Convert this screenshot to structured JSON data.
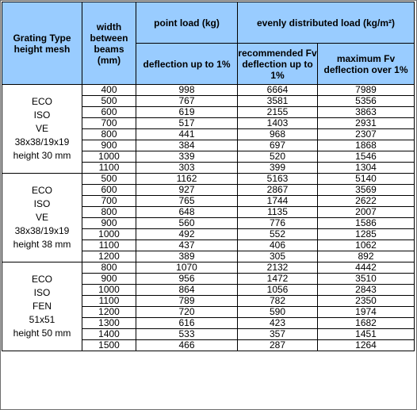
{
  "headers": {
    "grating_type": "Grating Type height mesh",
    "width": "width between beams (mm)",
    "point_load": "point load (kg)",
    "distributed_load": "evenly distributed load (kg/m²)",
    "deflection_1": "deflection up to 1%",
    "recommended": "recommended Fv deflection up to 1%",
    "maximum": "maximum  Fv deflection over  1%"
  },
  "groups": [
    {
      "lines": [
        "ECO",
        "ISO",
        "VE",
        "38x38/19x19",
        "height 30 mm"
      ],
      "rows": [
        [
          "400",
          "998",
          "6664",
          "7989"
        ],
        [
          "500",
          "767",
          "3581",
          "5356"
        ],
        [
          "600",
          "619",
          "2155",
          "3863"
        ],
        [
          "700",
          "517",
          "1403",
          "2931"
        ],
        [
          "800",
          "441",
          "968",
          "2307"
        ],
        [
          "900",
          "384",
          "697",
          "1868"
        ],
        [
          "1000",
          "339",
          "520",
          "1546"
        ],
        [
          "1100",
          "303",
          "399",
          "1304"
        ]
      ]
    },
    {
      "lines": [
        "ECO",
        "ISO",
        "VE",
        "38x38/19x19",
        "height 38 mm"
      ],
      "rows": [
        [
          "500",
          "1162",
          "5163",
          "5140"
        ],
        [
          "600",
          "927",
          "2867",
          "3569"
        ],
        [
          "700",
          "765",
          "1744",
          "2622"
        ],
        [
          "800",
          "648",
          "1135",
          "2007"
        ],
        [
          "900",
          "560",
          "776",
          "1586"
        ],
        [
          "1000",
          "492",
          "552",
          "1285"
        ],
        [
          "1100",
          "437",
          "406",
          "1062"
        ],
        [
          "1200",
          "389",
          "305",
          "892"
        ]
      ]
    },
    {
      "lines": [
        "ECO",
        "ISO",
        "FEN",
        "51x51",
        "height 50 mm"
      ],
      "rows": [
        [
          "800",
          "1070",
          "2132",
          "4442"
        ],
        [
          "900",
          "956",
          "1472",
          "3510"
        ],
        [
          "1000",
          "864",
          "1056",
          "2843"
        ],
        [
          "1100",
          "789",
          "782",
          "2350"
        ],
        [
          "1200",
          "720",
          "590",
          "1974"
        ],
        [
          "1300",
          "616",
          "423",
          "1682"
        ],
        [
          "1400",
          "533",
          "357",
          "1451"
        ],
        [
          "1500",
          "466",
          "287",
          "1264"
        ]
      ]
    }
  ]
}
